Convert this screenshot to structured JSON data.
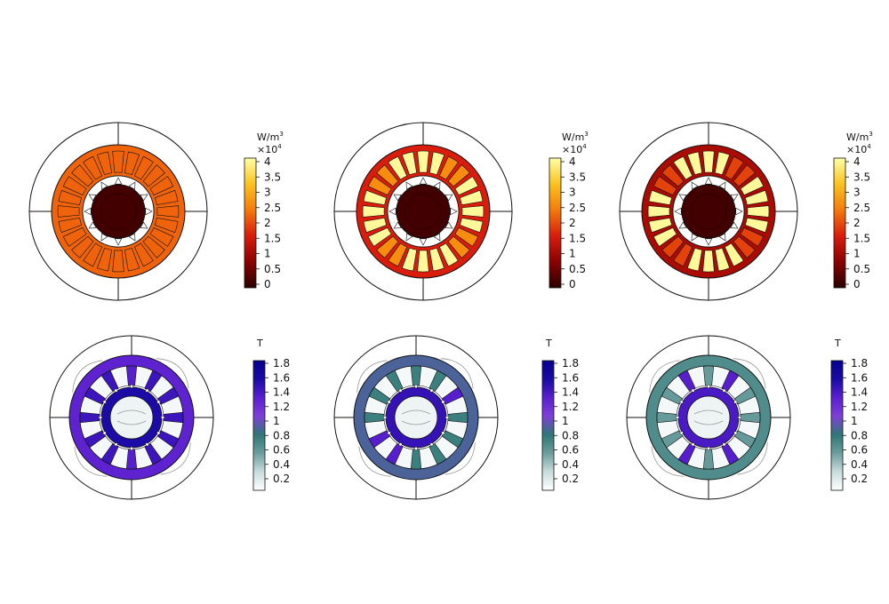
{
  "colors": {
    "heat_stops": [
      "#2a0000",
      "#8b0000",
      "#d91c0c",
      "#f57a0a",
      "#fbc21f",
      "#ffffa6"
    ],
    "flux_stops": [
      "#ffffff",
      "#c9dcdc",
      "#6c9e9e",
      "#2f7777",
      "#7f3fd8",
      "#5a1fd0",
      "#1a0aa5",
      "#07008e"
    ],
    "outline": "#111111",
    "light_line": "#9a9a9a"
  },
  "loss_plots": [
    {
      "id": "loss-1",
      "core_level": 0.05,
      "stator_level": 0.55,
      "slot_level": 0.55,
      "hot_slots": []
    },
    {
      "id": "loss-2",
      "core_level": 0.05,
      "stator_level": 0.4,
      "slot_level": 0.65,
      "hot_slots": [
        0,
        1,
        4,
        5,
        6,
        7,
        10,
        11,
        12,
        13,
        16,
        17,
        18,
        19,
        22,
        23
      ]
    },
    {
      "id": "loss-3",
      "core_level": 0.05,
      "stator_level": 0.28,
      "slot_level": 0.48,
      "hot_slots": [
        0,
        1,
        4,
        5,
        6,
        7,
        10,
        11,
        12,
        13,
        16,
        17,
        18,
        19,
        22,
        23
      ]
    }
  ],
  "flux_plots": [
    {
      "id": "flux-1",
      "tooth_level": 0.78,
      "yoke_level": 0.7,
      "hot_teeth": [
        0,
        6
      ],
      "rotor_level": 0.85
    },
    {
      "id": "flux-2",
      "tooth_level": 0.4,
      "yoke_level": 0.48,
      "hot_teeth": [
        2,
        7
      ],
      "rotor_level": 0.8
    },
    {
      "id": "flux-3",
      "tooth_level": 0.3,
      "yoke_level": 0.35,
      "hot_teeth": [
        1,
        5
      ],
      "rotor_level": 0.75
    }
  ],
  "loss_legend": {
    "unit": "W/m",
    "unit_sup": "3",
    "scale": "×10",
    "scale_sup": "4",
    "ticks": [
      "4",
      "3.5",
      "3",
      "2.5",
      "2",
      "1.5",
      "1",
      "0.5",
      "0"
    ]
  },
  "flux_legend": {
    "unit": "T",
    "ticks": [
      "1.8",
      "1.6",
      "1.4",
      "1.2",
      "1",
      "0.8",
      "0.6",
      "0.4",
      "0.2"
    ]
  }
}
